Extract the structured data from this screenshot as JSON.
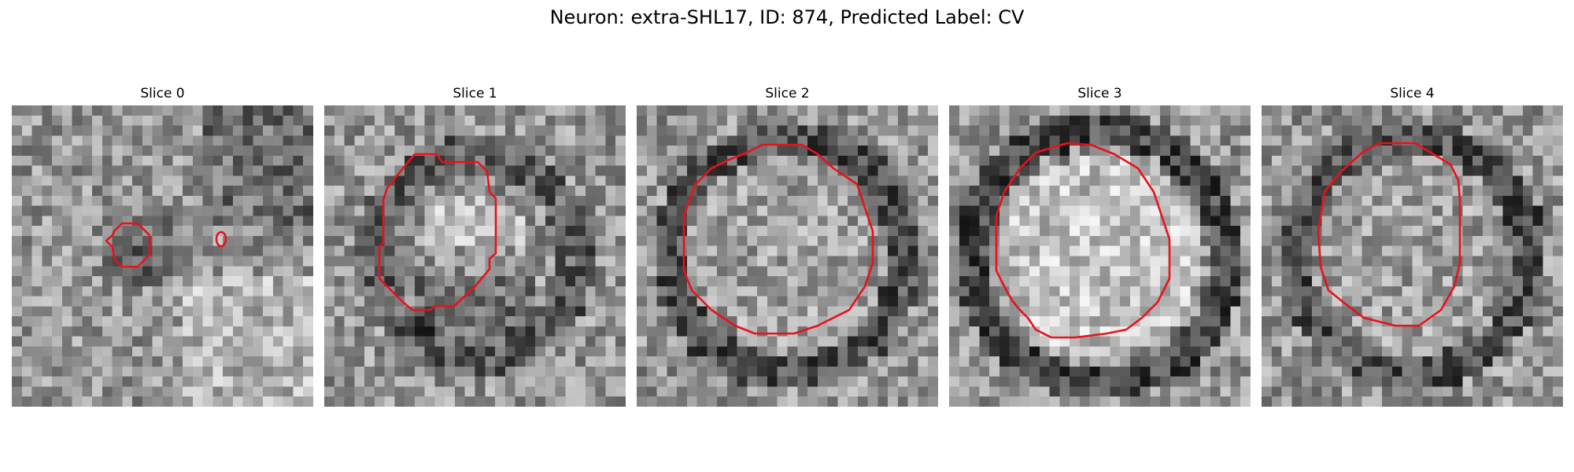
{
  "figure": {
    "title": "Neuron: extra-SHL17, ID: 874, Predicted Label: CV",
    "contour_color": "#e8121a",
    "colormap": "gray",
    "grid_size": 30
  },
  "panels": [
    {
      "label": "Slice 0",
      "seed": 11,
      "pattern": "blob"
    },
    {
      "label": "Slice 1",
      "seed": 23,
      "pattern": "ring-dark-bottom"
    },
    {
      "label": "Slice 2",
      "seed": 37,
      "pattern": "ring"
    },
    {
      "label": "Slice 3",
      "seed": 51,
      "pattern": "ring-bright"
    },
    {
      "label": "Slice 4",
      "seed": 67,
      "pattern": "ring"
    }
  ]
}
